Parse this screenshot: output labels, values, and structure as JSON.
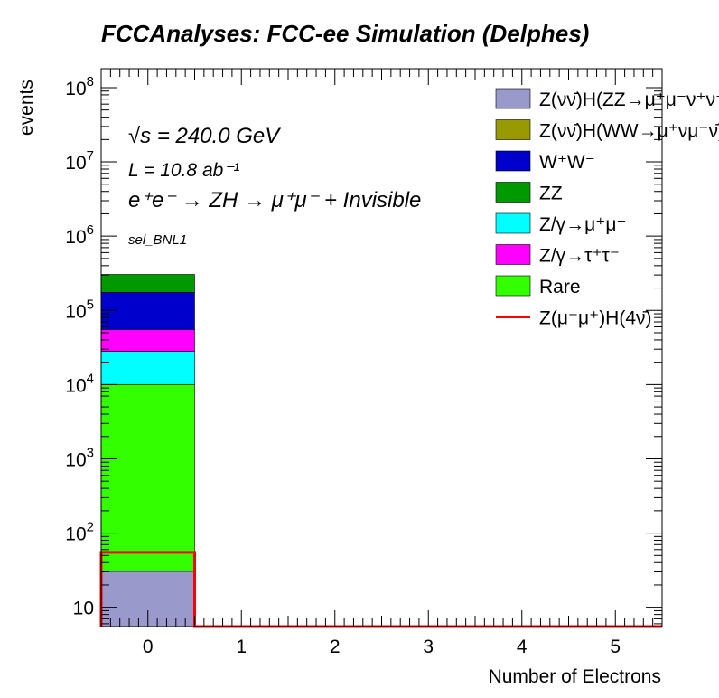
{
  "chart_data": {
    "type": "bar",
    "title": "FCCAnalyses: FCC-ee Simulation (Delphes)",
    "xlabel": "Number of Electrons",
    "ylabel": "events",
    "x_ticks": [
      "0",
      "1",
      "2",
      "3",
      "4",
      "5"
    ],
    "x_range": [
      -0.5,
      5.5
    ],
    "y_scale": "log",
    "y_range": [
      5.5,
      180000000
    ],
    "y_ticks": [
      {
        "value": 10,
        "base": "10",
        "exp": ""
      },
      {
        "value": 100,
        "base": "10",
        "exp": "2"
      },
      {
        "value": 1000,
        "base": "10",
        "exp": "3"
      },
      {
        "value": 10000,
        "base": "10",
        "exp": "4"
      },
      {
        "value": 100000,
        "base": "10",
        "exp": "5"
      },
      {
        "value": 1000000,
        "base": "10",
        "exp": "6"
      },
      {
        "value": 10000000,
        "base": "10",
        "exp": "7"
      },
      {
        "value": 100000000,
        "base": "10",
        "exp": "8"
      }
    ],
    "categories": [
      "0",
      "1",
      "2",
      "3",
      "4",
      "5"
    ],
    "stack_bottom": 5.5,
    "stacked_series": [
      {
        "name": "Z(νν̄)H(ZZ→μ⁺μ⁻ν⁺ν⁻)",
        "color": "#9999cc",
        "values": [
          25,
          0,
          0,
          0,
          0,
          0
        ]
      },
      {
        "name": "Z(νν̄)H(WW→μ⁺νμ⁻ν̄)",
        "color": "#999900",
        "values": [
          0,
          0,
          0,
          0,
          0,
          0
        ]
      },
      {
        "name": "Rare",
        "color": "#33ff00",
        "values": [
          10000,
          0,
          0,
          0,
          0,
          0
        ]
      },
      {
        "name": "Z/γ→μ⁺μ⁻",
        "color": "#00ffff",
        "values": [
          18000,
          0,
          0,
          0,
          0,
          0
        ]
      },
      {
        "name": "Z/γ→τ⁺τ⁻",
        "color": "#ff00ff",
        "values": [
          27000,
          0,
          0,
          0,
          0,
          0
        ]
      },
      {
        "name": "W⁺W⁻",
        "color": "#0000cc",
        "values": [
          120000,
          0,
          0,
          0,
          0,
          0
        ]
      },
      {
        "name": "ZZ",
        "color": "#009900",
        "values": [
          130000,
          0,
          0,
          0,
          0,
          0
        ]
      }
    ],
    "signal_series": {
      "name": "Z(μ⁻μ⁺)H(4ν̄)",
      "color": "#ff0000",
      "values": [
        55,
        0,
        0,
        0,
        0,
        0
      ]
    },
    "legend_position": "top-right",
    "annotations": {
      "sqrt_s": "√s = 240.0 GeV",
      "lumi": "L = 10.8 ab⁻¹",
      "process": "e⁺e⁻ → ZH → μ⁺μ⁻ + Invisible",
      "selection": "sel_BNL1"
    }
  },
  "legend": [
    {
      "label": "Z(νν̄)H(ZZ→μ⁺μ⁻ν⁺ν⁻)",
      "type": "box",
      "color": "#9999cc"
    },
    {
      "label": "Z(νν̄)H(WW→μ⁺νμ⁻ν̄)",
      "type": "box",
      "color": "#999900"
    },
    {
      "label": "W⁺W⁻",
      "type": "box",
      "color": "#0000cc"
    },
    {
      "label": "ZZ",
      "type": "box",
      "color": "#009900"
    },
    {
      "label": "Z/γ→μ⁺μ⁻",
      "type": "box",
      "color": "#00ffff"
    },
    {
      "label": "Z/γ→τ⁺τ⁻",
      "type": "box",
      "color": "#ff00ff"
    },
    {
      "label": "Rare",
      "type": "box",
      "color": "#33ff00"
    },
    {
      "label": "Z(μ⁻μ⁺)H(4ν̄)",
      "type": "line",
      "color": "#ff0000"
    }
  ]
}
